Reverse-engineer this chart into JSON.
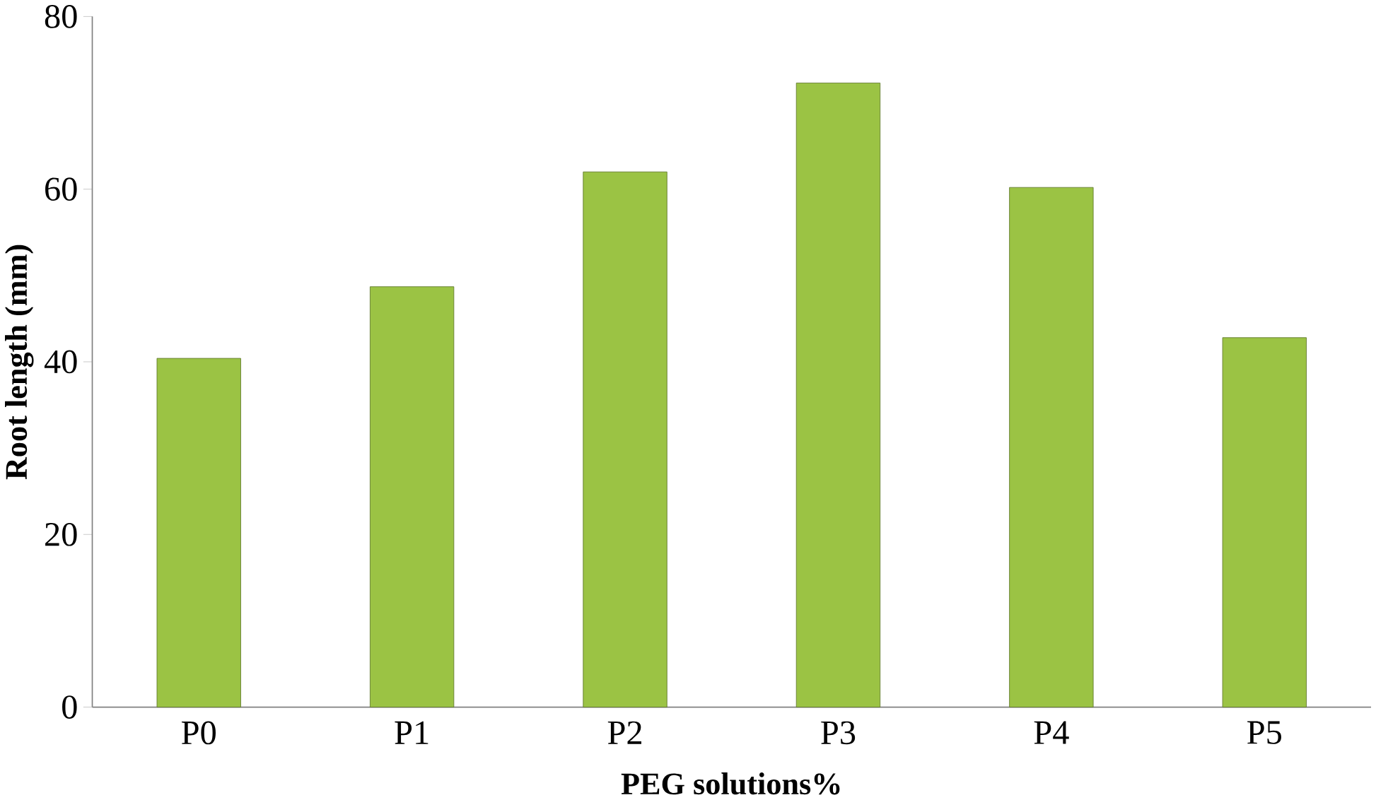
{
  "chart_data": {
    "type": "bar",
    "xlabel": "PEG solutions%",
    "ylabel": "Root length (mm)",
    "categories": [
      "P0",
      "P1",
      "P2",
      "P3",
      "P4",
      "P5"
    ],
    "values": [
      40.4,
      48.7,
      62.0,
      72.3,
      60.2,
      42.8
    ],
    "color": "#9bc344",
    "ylim": [
      0,
      80
    ],
    "yticks": [
      0,
      20,
      40,
      60,
      80
    ],
    "grid": false
  }
}
